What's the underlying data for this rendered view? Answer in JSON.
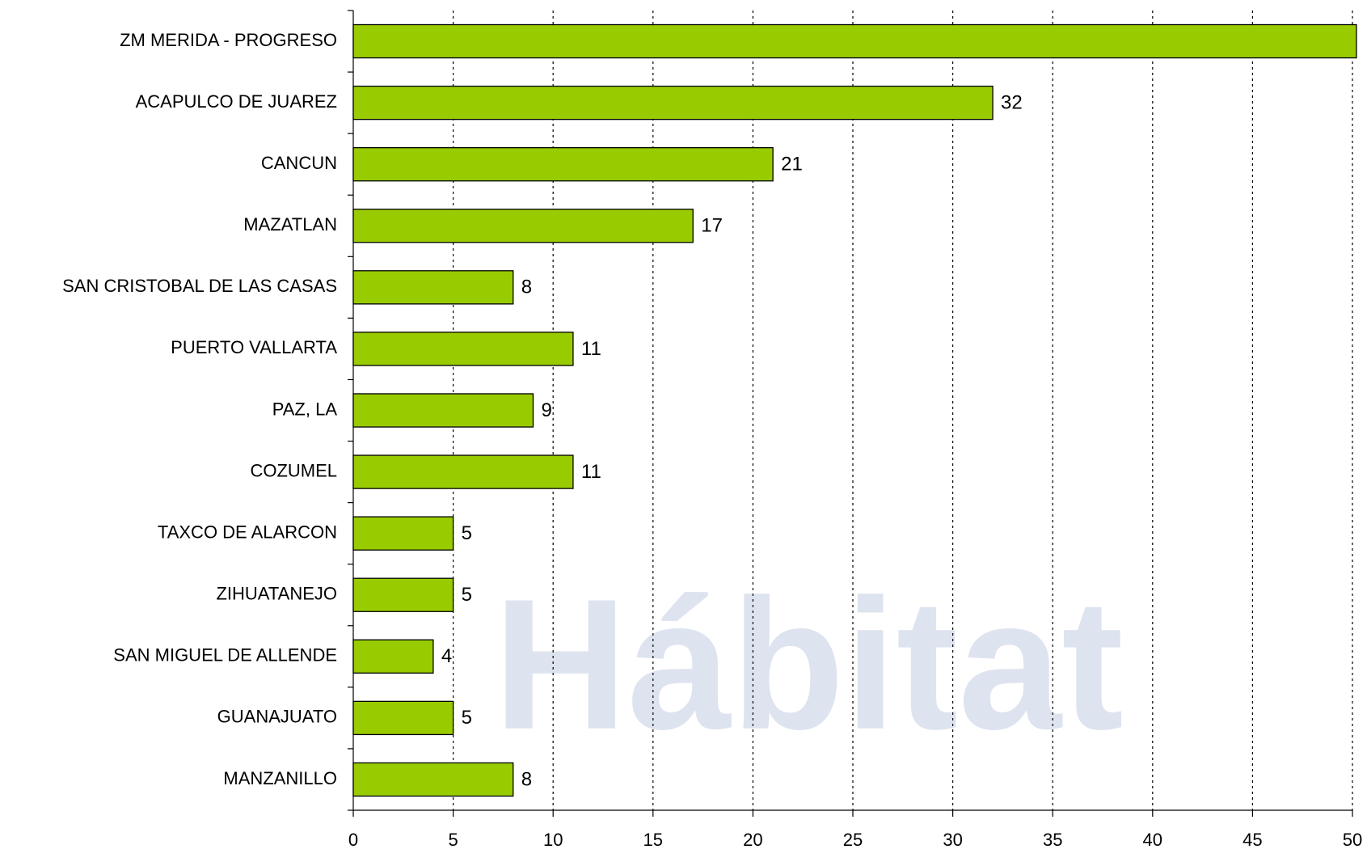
{
  "chart_data": {
    "type": "bar",
    "orientation": "horizontal",
    "watermark": "Hábitat",
    "categories": [
      "ZM MERIDA - PROGRESO",
      "ACAPULCO DE JUAREZ",
      "CANCUN",
      "MAZATLAN",
      "SAN CRISTOBAL DE LAS CASAS",
      "PUERTO VALLARTA",
      "PAZ, LA",
      "COZUMEL",
      "TAXCO DE ALARCON",
      "ZIHUATANEJO",
      "SAN MIGUEL DE ALLENDE",
      "GUANAJUATO",
      "MANZANILLO"
    ],
    "values": [
      50.2,
      32,
      21,
      17,
      8,
      11,
      9,
      11,
      5,
      5,
      4,
      5,
      8
    ],
    "value_labels": [
      null,
      "32",
      "21",
      "17",
      "8",
      "11",
      "9",
      "11",
      "5",
      "5",
      "4",
      "5",
      "8"
    ],
    "color": "#99cc00",
    "xlim": [
      0,
      50
    ],
    "xticks": [
      0,
      5,
      10,
      15,
      20,
      25,
      30,
      35,
      40,
      45,
      50
    ],
    "grid": true
  }
}
